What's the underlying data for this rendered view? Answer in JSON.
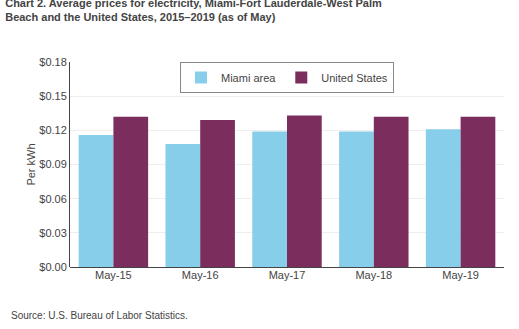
{
  "chart_data": {
    "type": "bar",
    "title": "Chart 2. Average prices for electricity, Miami-Fort Lauderdale-West Palm\nBeach and the United States, 2015–2019 (as of May)",
    "ylabel": "Per kWh",
    "annotations": [
      "Source: U.S. Bureau of Labor Statistics."
    ],
    "categories": [
      "May-15",
      "May-16",
      "May-17",
      "May-18",
      "May-19"
    ],
    "series": [
      {
        "name": "Miami area",
        "color": "#87CEEB",
        "values": [
          0.116,
          0.108,
          0.119,
          0.119,
          0.121
        ]
      },
      {
        "name": "United States",
        "color": "#7B2D5E",
        "values": [
          0.132,
          0.129,
          0.133,
          0.132,
          0.132
        ]
      }
    ],
    "ylim": [
      0,
      0.18
    ],
    "yticks": [
      {
        "value": 0.0,
        "label": "$0.00"
      },
      {
        "value": 0.03,
        "label": "$0.03"
      },
      {
        "value": 0.06,
        "label": "$0.06"
      },
      {
        "value": 0.09,
        "label": "$0.09"
      },
      {
        "value": 0.12,
        "label": "$0.12"
      },
      {
        "value": 0.15,
        "label": "$0.15"
      },
      {
        "value": 0.18,
        "label": "$0.18"
      }
    ],
    "grid": true,
    "legend": "top"
  }
}
